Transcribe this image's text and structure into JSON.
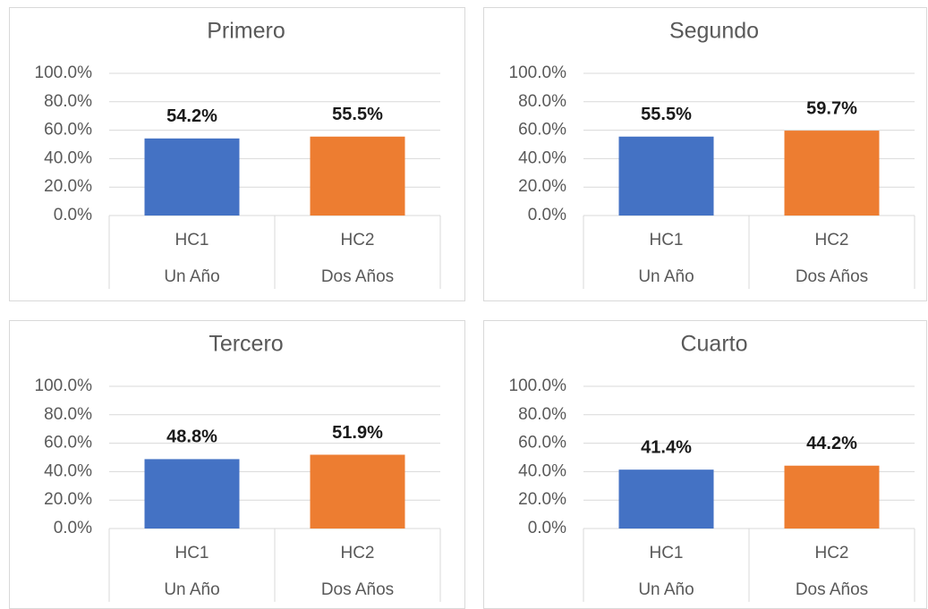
{
  "chart_data": [
    {
      "type": "bar",
      "title": "Primero",
      "categories": [
        "HC1",
        "HC2"
      ],
      "category_groups": [
        "Un Año",
        "Dos Años"
      ],
      "values": [
        54.2,
        55.5
      ],
      "value_labels": [
        "54.2%",
        "55.5%"
      ],
      "colors": [
        "#4472c4",
        "#ed7d31"
      ],
      "ylim": [
        0,
        100
      ],
      "yticks": [
        {
          "value": 0,
          "label": "0.0%"
        },
        {
          "value": 20,
          "label": "20.0%"
        },
        {
          "value": 40,
          "label": "40.0%"
        },
        {
          "value": 60,
          "label": "60.0%"
        },
        {
          "value": 80,
          "label": "80.0%"
        },
        {
          "value": 100,
          "label": "100.0%"
        }
      ],
      "grid": true
    },
    {
      "type": "bar",
      "title": "Segundo",
      "categories": [
        "HC1",
        "HC2"
      ],
      "category_groups": [
        "Un Año",
        "Dos Años"
      ],
      "values": [
        55.5,
        59.7
      ],
      "value_labels": [
        "55.5%",
        "59.7%"
      ],
      "colors": [
        "#4472c4",
        "#ed7d31"
      ],
      "ylim": [
        0,
        100
      ],
      "yticks": [
        {
          "value": 0,
          "label": "0.0%"
        },
        {
          "value": 20,
          "label": "20.0%"
        },
        {
          "value": 40,
          "label": "40.0%"
        },
        {
          "value": 60,
          "label": "60.0%"
        },
        {
          "value": 80,
          "label": "80.0%"
        },
        {
          "value": 100,
          "label": "100.0%"
        }
      ],
      "grid": true
    },
    {
      "type": "bar",
      "title": "Tercero",
      "categories": [
        "HC1",
        "HC2"
      ],
      "category_groups": [
        "Un Año",
        "Dos Años"
      ],
      "values": [
        48.8,
        51.9
      ],
      "value_labels": [
        "48.8%",
        "51.9%"
      ],
      "colors": [
        "#4472c4",
        "#ed7d31"
      ],
      "ylim": [
        0,
        100
      ],
      "yticks": [
        {
          "value": 0,
          "label": "0.0%"
        },
        {
          "value": 20,
          "label": "20.0%"
        },
        {
          "value": 40,
          "label": "40.0%"
        },
        {
          "value": 60,
          "label": "60.0%"
        },
        {
          "value": 80,
          "label": "80.0%"
        },
        {
          "value": 100,
          "label": "100.0%"
        }
      ],
      "grid": true
    },
    {
      "type": "bar",
      "title": "Cuarto",
      "categories": [
        "HC1",
        "HC2"
      ],
      "category_groups": [
        "Un Año",
        "Dos Años"
      ],
      "values": [
        41.4,
        44.2
      ],
      "value_labels": [
        "41.4%",
        "44.2%"
      ],
      "colors": [
        "#4472c4",
        "#ed7d31"
      ],
      "ylim": [
        0,
        100
      ],
      "yticks": [
        {
          "value": 0,
          "label": "0.0%"
        },
        {
          "value": 20,
          "label": "20.0%"
        },
        {
          "value": 40,
          "label": "40.0%"
        },
        {
          "value": 60,
          "label": "60.0%"
        },
        {
          "value": 80,
          "label": "80.0%"
        },
        {
          "value": 100,
          "label": "100.0%"
        }
      ],
      "grid": true
    }
  ]
}
